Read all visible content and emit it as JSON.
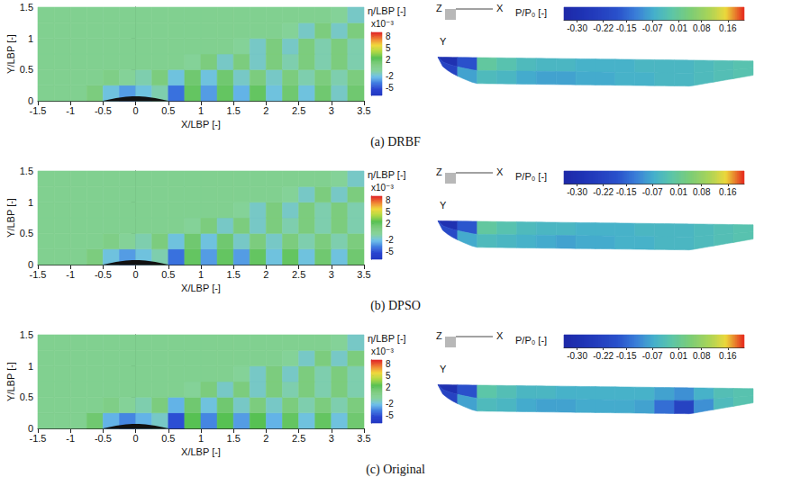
{
  "chart_data": [
    {
      "type": "heatmap",
      "title": "(a) DRBF",
      "x_label": "X/LBP [-]",
      "y_label": "Y/LBP [-]",
      "x": [
        -1.375,
        -1.125,
        -0.875,
        -0.625,
        -0.375,
        -0.125,
        0.125,
        0.375,
        0.625,
        0.875,
        1.125,
        1.375,
        1.625,
        1.875,
        2.125,
        2.375,
        2.625,
        2.875,
        3.125,
        3.375
      ],
      "y": [
        0.125,
        0.375,
        0.625,
        0.875,
        1.125,
        1.375
      ],
      "values": [
        [
          0,
          0,
          0,
          1,
          -2,
          -3,
          -2,
          -1,
          -4,
          2,
          -3,
          2,
          -2.5,
          2,
          -2,
          1.5,
          -2,
          1.5,
          -1.5,
          1.5
        ],
        [
          0,
          0,
          0,
          0,
          0.5,
          -0.5,
          -1,
          1,
          -2,
          1.5,
          -2,
          1.5,
          -1.5,
          1,
          -1.5,
          1,
          -1,
          1,
          -1,
          1
        ],
        [
          0,
          0,
          0,
          0,
          0,
          0,
          0,
          0,
          0,
          -0.5,
          1,
          -1.5,
          1,
          -1.5,
          1,
          -1,
          1,
          -1,
          1,
          -1
        ],
        [
          0,
          0,
          0,
          0,
          0,
          0,
          0,
          0,
          0,
          0,
          0,
          0,
          -0.5,
          -1.5,
          1,
          -1.5,
          1,
          -1,
          1,
          -1
        ],
        [
          0,
          0,
          0,
          0,
          0,
          0,
          0,
          0,
          0,
          0,
          0,
          0,
          0,
          0,
          0,
          -0.5,
          -1.5,
          1,
          -1.5,
          1
        ],
        [
          0,
          0,
          0,
          0,
          0,
          0,
          0,
          0,
          0,
          0,
          0,
          0,
          0,
          0,
          0,
          0,
          0,
          0,
          -0.5,
          -1.5
        ]
      ],
      "hull_x": [
        -0.5,
        0.5
      ],
      "xlim": [
        -1.5,
        3.5
      ],
      "xticks": [
        -1.5,
        -1,
        -0.5,
        0,
        0.5,
        1,
        1.5,
        2,
        2.5,
        3,
        3.5
      ],
      "ylim": [
        0,
        1.5
      ],
      "yticks": [
        0,
        0.5,
        1,
        1.5
      ],
      "grid": false,
      "colorbar": {
        "label": "η/LBP [-]",
        "scale_label": "x10⁻³",
        "range": [
          -7,
          9
        ],
        "ticks": [
          8,
          5,
          2,
          -2,
          -5
        ]
      }
    },
    {
      "type": "surface",
      "axes": [
        "Z",
        "X",
        "Y"
      ],
      "tick_labels": false,
      "values": [
        [
          -0.3,
          -0.18,
          0.0,
          -0.02,
          -0.04,
          -0.05,
          -0.05,
          -0.06,
          -0.06,
          -0.06,
          -0.05,
          -0.05,
          -0.05,
          -0.04,
          -0.03,
          -0.02
        ],
        [
          -0.22,
          -0.08,
          -0.04,
          -0.05,
          -0.07,
          -0.08,
          -0.08,
          -0.07,
          -0.07,
          -0.06,
          -0.06,
          -0.05,
          -0.05,
          -0.04,
          -0.03,
          -0.02
        ]
      ],
      "colorbar": {
        "label": "P/P₀ [-]",
        "range": [
          -0.34,
          0.21
        ],
        "ticks": [
          {
            "value": -0.3,
            "label": "-0.30"
          },
          -0.22,
          -0.15,
          -0.07,
          0.01,
          0.08,
          0.16
        ]
      }
    },
    {
      "type": "heatmap",
      "title": "(b) DPSO",
      "x_label": "X/LBP [-]",
      "y_label": "Y/LBP [-]",
      "x": [
        -1.375,
        -1.125,
        -0.875,
        -0.625,
        -0.375,
        -0.125,
        0.125,
        0.375,
        0.625,
        0.875,
        1.125,
        1.375,
        1.625,
        1.875,
        2.125,
        2.375,
        2.625,
        2.875,
        3.125,
        3.375
      ],
      "y": [
        0.125,
        0.375,
        0.625,
        0.875,
        1.125,
        1.375
      ],
      "values": [
        [
          0,
          0,
          0,
          1,
          -2,
          -3,
          -2,
          -1,
          -4,
          2,
          -3,
          2,
          -3,
          2,
          -2,
          2,
          -2,
          1.5,
          -2,
          1.5
        ],
        [
          0,
          0,
          0,
          0,
          0.5,
          -0.5,
          -1,
          1,
          -2,
          1.5,
          -2,
          1.5,
          -1.5,
          1,
          -1.5,
          1,
          -1,
          1,
          -1,
          1
        ],
        [
          0,
          0,
          0,
          0,
          0,
          0,
          0,
          0,
          0,
          -0.5,
          1,
          -1.5,
          1,
          -1.5,
          1,
          -1,
          1,
          -1,
          1,
          -1
        ],
        [
          0,
          0,
          0,
          0,
          0,
          0,
          0,
          0,
          0,
          0,
          0,
          0,
          -0.5,
          -1.5,
          1,
          -1.5,
          1,
          -1,
          1,
          -1
        ],
        [
          0,
          0,
          0,
          0,
          0,
          0,
          0,
          0,
          0,
          0,
          0,
          0,
          0,
          0,
          0,
          -0.5,
          -1.5,
          1,
          -1.5,
          1
        ],
        [
          0,
          0,
          0,
          0,
          0,
          0,
          0,
          0,
          0,
          0,
          0,
          0,
          0,
          0,
          0,
          0,
          0,
          0,
          -0.5,
          -1.5
        ]
      ],
      "hull_x": [
        -0.5,
        0.5
      ],
      "xlim": [
        -1.5,
        3.5
      ],
      "xticks": [
        -1.5,
        -1,
        -0.5,
        0,
        0.5,
        1,
        1.5,
        2,
        2.5,
        3,
        3.5
      ],
      "ylim": [
        0,
        1.5
      ],
      "yticks": [
        0,
        0.5,
        1,
        1.5
      ],
      "grid": false,
      "colorbar": {
        "label": "η/LBP [-]",
        "scale_label": "x10⁻³",
        "range": [
          -7,
          9
        ],
        "ticks": [
          8,
          5,
          2,
          -2,
          -5
        ]
      }
    },
    {
      "type": "surface",
      "axes": [
        "Z",
        "X",
        "Y"
      ],
      "tick_labels": false,
      "values": [
        [
          -0.3,
          -0.17,
          0.0,
          -0.02,
          -0.04,
          -0.05,
          -0.05,
          -0.06,
          -0.06,
          -0.06,
          -0.05,
          -0.05,
          -0.05,
          -0.04,
          -0.03,
          -0.02
        ],
        [
          -0.2,
          -0.07,
          -0.04,
          -0.05,
          -0.06,
          -0.07,
          -0.08,
          -0.07,
          -0.07,
          -0.06,
          -0.06,
          -0.05,
          -0.05,
          -0.04,
          -0.03,
          -0.02
        ]
      ],
      "colorbar": {
        "label": "P/P₀ [-]",
        "range": [
          -0.34,
          0.21
        ],
        "ticks": [
          {
            "value": -0.3,
            "label": "-0.30"
          },
          -0.22,
          -0.15,
          -0.07,
          0.01,
          0.08,
          0.16
        ]
      }
    },
    {
      "type": "heatmap",
      "title": "(c) Original",
      "x_label": "X/LBP [-]",
      "y_label": "Y/LBP [-]",
      "x": [
        -1.375,
        -1.125,
        -0.875,
        -0.625,
        -0.375,
        -0.125,
        0.125,
        0.375,
        0.625,
        0.875,
        1.125,
        1.375,
        1.625,
        1.875,
        2.125,
        2.375,
        2.625,
        2.875,
        3.125,
        3.375
      ],
      "y": [
        0.125,
        0.375,
        0.625,
        0.875,
        1.125,
        1.375
      ],
      "values": [
        [
          0,
          0,
          0,
          1.5,
          -2.5,
          -3.5,
          -2.5,
          -1.5,
          -5,
          2.5,
          -3.5,
          2.5,
          -3,
          2.5,
          -2.5,
          2,
          -2,
          2,
          -2,
          1.5
        ],
        [
          0,
          0,
          0,
          0,
          0.5,
          -0.5,
          -1,
          1,
          -2.5,
          1.5,
          -2,
          1.5,
          -1.5,
          1,
          -1.5,
          1,
          -1,
          1,
          -1,
          1
        ],
        [
          0,
          0,
          0,
          0,
          0,
          0,
          0,
          0,
          0,
          -0.5,
          1,
          -1.5,
          1,
          -1.5,
          1,
          -1,
          1,
          -1,
          1,
          -1
        ],
        [
          0,
          0,
          0,
          0,
          0,
          0,
          0,
          0,
          0,
          0,
          0,
          0,
          -0.5,
          -1.5,
          1,
          -1.5,
          1,
          -1,
          1,
          -1
        ],
        [
          0,
          0,
          0,
          0,
          0,
          0,
          0,
          0,
          0,
          0,
          0,
          0,
          0,
          0,
          0,
          -0.5,
          -1.5,
          1,
          -1.5,
          1
        ],
        [
          0,
          0,
          0,
          0,
          0,
          0,
          0,
          0,
          0,
          0,
          0,
          0,
          0,
          0,
          0,
          0,
          0,
          0,
          -0.5,
          -1.5
        ]
      ],
      "hull_x": [
        -0.5,
        0.5
      ],
      "xlim": [
        -1.5,
        3.5
      ],
      "xticks": [
        -1.5,
        -1,
        -0.5,
        0,
        0.5,
        1,
        1.5,
        2,
        2.5,
        3,
        3.5
      ],
      "ylim": [
        0,
        1.5
      ],
      "yticks": [
        0,
        0.5,
        1,
        1.5
      ],
      "grid": false,
      "colorbar": {
        "label": "η/LBP [-]",
        "scale_label": "x10⁻³",
        "range": [
          -7,
          9
        ],
        "ticks": [
          8,
          5,
          2,
          -2,
          -5
        ]
      }
    },
    {
      "type": "surface",
      "axes": [
        "Z",
        "X",
        "Y"
      ],
      "tick_labels": false,
      "values": [
        [
          -0.3,
          -0.18,
          -0.01,
          -0.03,
          -0.05,
          -0.05,
          -0.06,
          -0.06,
          -0.06,
          -0.06,
          -0.06,
          -0.08,
          -0.1,
          -0.06,
          -0.03,
          -0.02
        ],
        [
          -0.22,
          -0.08,
          -0.04,
          -0.05,
          -0.07,
          -0.08,
          -0.08,
          -0.07,
          -0.07,
          -0.07,
          -0.08,
          -0.14,
          -0.22,
          -0.1,
          -0.04,
          -0.02
        ]
      ],
      "colorbar": {
        "label": "P/P₀ [-]",
        "range": [
          -0.34,
          0.21
        ],
        "ticks": [
          {
            "value": -0.3,
            "label": "-0.30"
          },
          -0.22,
          -0.15,
          -0.07,
          0.01,
          0.08,
          0.16
        ]
      }
    }
  ]
}
